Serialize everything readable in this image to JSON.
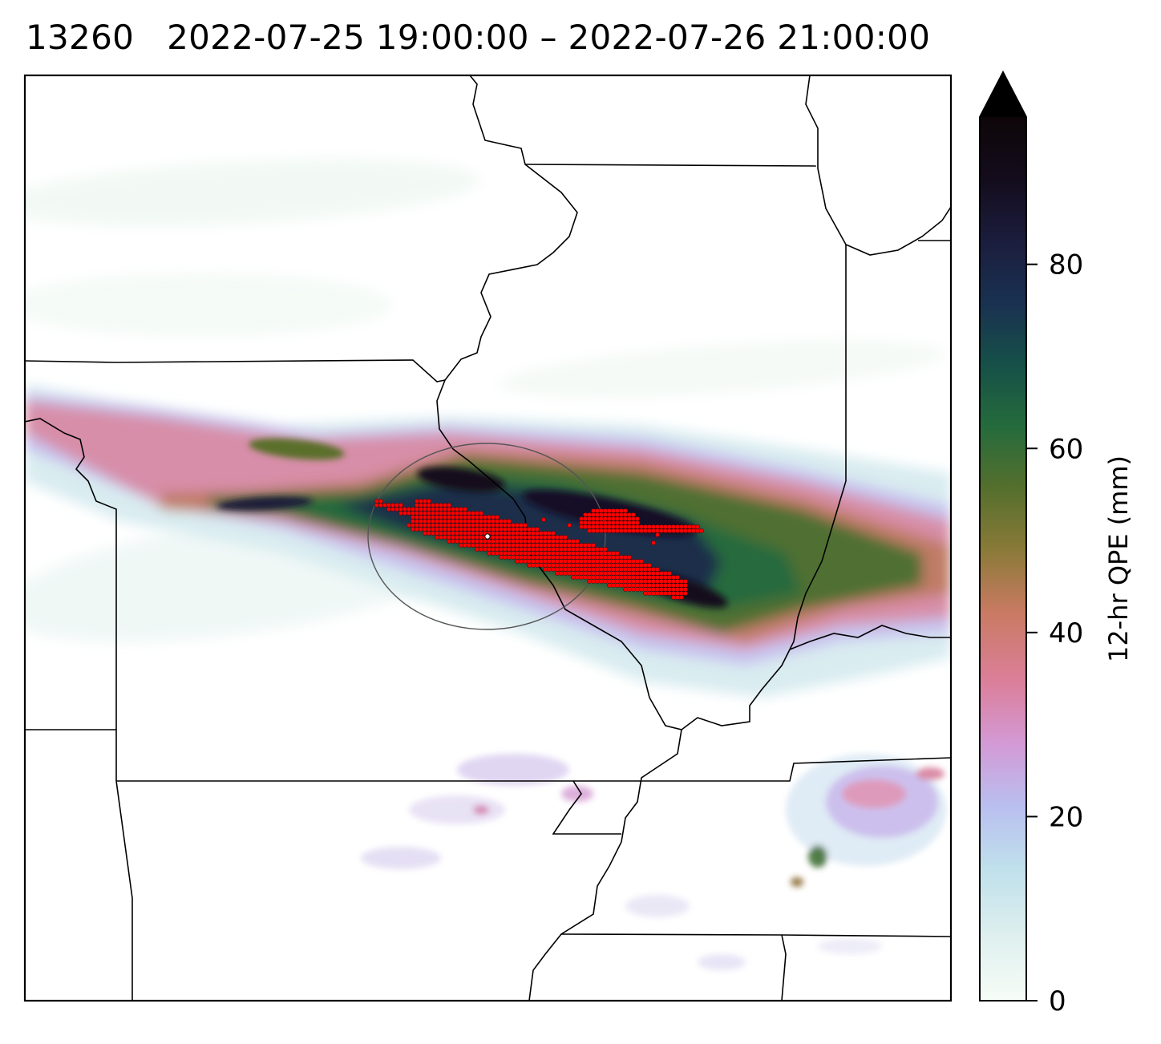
{
  "title": {
    "id": "13260",
    "start": "2022-07-25 19:00:00",
    "separator": "–",
    "end": "2022-07-26 21:00:00"
  },
  "colorbar": {
    "label": "12-hr QPE (mm)",
    "range": [
      0,
      96
    ],
    "extend": "max",
    "ticks": [
      "0",
      "20",
      "40",
      "60",
      "80"
    ],
    "tick_values": [
      0,
      20,
      40,
      60,
      80
    ],
    "colormap": "cubehelix-like",
    "stops": [
      "#f7fcf7",
      "#dff0ee",
      "#bfe0ec",
      "#b9bfef",
      "#d39ad6",
      "#db7f9b",
      "#c97a62",
      "#8a7a38",
      "#556f2d",
      "#256b3c",
      "#165048",
      "#1a3151",
      "#1b1d3d",
      "#140c1c",
      "#000000"
    ]
  },
  "map": {
    "region": "Midwest United States",
    "precip_band": "WNW–ESE band of heavy precipitation",
    "exceedance_marker_color": "#ff0000",
    "center_marker_color": "#ffffff",
    "circle_color": "#555555"
  }
}
